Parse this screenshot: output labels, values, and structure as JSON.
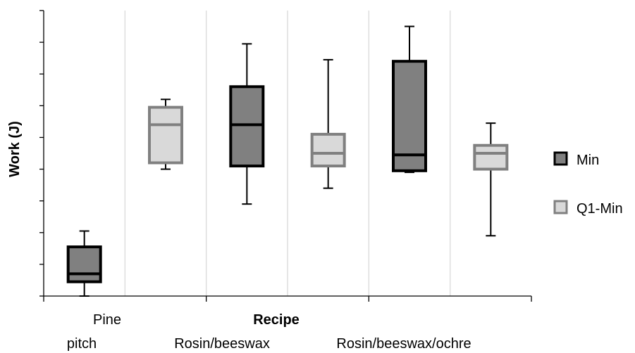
{
  "chart_data": {
    "type": "box",
    "title": "",
    "xlabel": "Recipe",
    "ylabel": "Work (J)",
    "categories": [
      "Pine pitch",
      "Rosin/beeswax",
      "Rosin/beeswax/ochre"
    ],
    "category_label_lines": [
      [
        "Pine",
        "pitch"
      ],
      [
        "Rosin/beeswax"
      ],
      [
        "Rosin/beeswax/ochre"
      ]
    ],
    "y_tick_count": 9,
    "ylim": [
      0,
      9
    ],
    "grid": "vertical",
    "legend_position": "right",
    "series": [
      {
        "name": "Min",
        "fill": "#808080",
        "stroke": "#000000",
        "boxes": [
          {
            "min": 0.0,
            "q1": 0.45,
            "median": 0.7,
            "q3": 1.55,
            "max": 2.05
          },
          {
            "min": 2.9,
            "q1": 4.1,
            "median": 5.4,
            "q3": 6.6,
            "max": 7.95
          },
          {
            "min": 3.9,
            "q1": 3.95,
            "median": 4.45,
            "q3": 7.4,
            "max": 8.5
          }
        ]
      },
      {
        "name": "Q1-Min",
        "fill": "#d9d9d9",
        "stroke": "#808080",
        "boxes": [
          {
            "min": 4.0,
            "q1": 4.2,
            "median": 5.4,
            "q3": 5.95,
            "max": 6.2
          },
          {
            "min": 3.4,
            "q1": 4.1,
            "median": 4.5,
            "q3": 5.1,
            "max": 7.45
          },
          {
            "min": 1.9,
            "q1": 4.0,
            "median": 4.5,
            "q3": 4.75,
            "max": 5.45
          }
        ]
      }
    ]
  }
}
